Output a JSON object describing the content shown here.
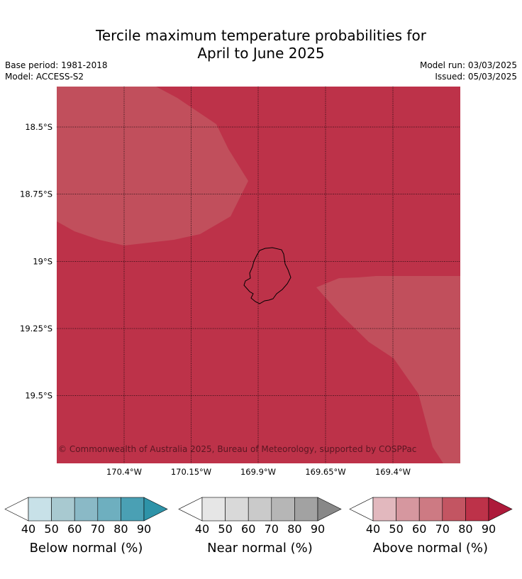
{
  "title_line1": "Tercile maximum temperature probabilities for",
  "title_line2": "April to June 2025",
  "base_period": "Base period: 1981-2018",
  "model": "Model: ACCESS-S2",
  "model_run": "Model run: 03/03/2025",
  "issued": "Issued: 05/03/2025",
  "map": {
    "latitude_labels": [
      "18.5°S",
      "18.75°S",
      "19°S",
      "19.25°S",
      "19.5°S"
    ],
    "longitude_labels": [
      "170.4°W",
      "170.15°W",
      "169.9°W",
      "169.65°W",
      "169.4°W"
    ],
    "copyright": "© Commonwealth of Australia 2025, Bureau of Meteorology, supported by COSPPac",
    "region_dominant": "Above normal 80-90%",
    "region_patches": "Above normal 70-80%",
    "colors": {
      "above_80_90": "#bd3249",
      "above_70_80": "#c14f5c",
      "coastline": "#000000"
    }
  },
  "colorbars": {
    "ticks": [
      "40",
      "50",
      "60",
      "70",
      "80",
      "90"
    ],
    "below": {
      "label": "Below normal (%)",
      "colors": [
        "#ffffff",
        "#c8e1e8",
        "#a8c9d0",
        "#8ab9c6",
        "#6eafbf",
        "#4aa0b4",
        "#2e93a8"
      ]
    },
    "near": {
      "label": "Near normal (%)",
      "colors": [
        "#ffffff",
        "#e6e6e6",
        "#d9d9d9",
        "#cacaca",
        "#b6b6b6",
        "#a2a2a2",
        "#888888"
      ]
    },
    "above": {
      "label": "Above normal (%)",
      "colors": [
        "#ffffff",
        "#e2b8be",
        "#d6979f",
        "#cd7a83",
        "#c35562",
        "#bd3249",
        "#ad1a3a"
      ]
    }
  }
}
